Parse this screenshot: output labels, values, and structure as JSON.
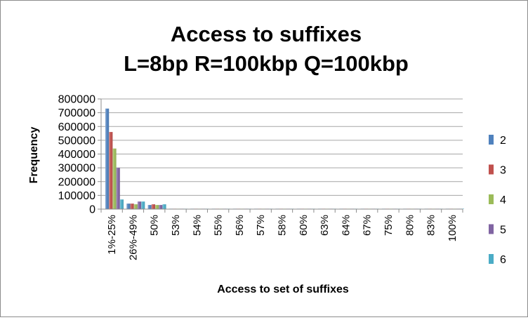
{
  "chart_data": {
    "type": "bar",
    "title": "Access to suffixes",
    "subtitle": "L=8bp R=100kbp Q=100kbp",
    "xlabel": "Access to set of suffixes",
    "ylabel": "Frequency",
    "ylim": [
      0,
      800000
    ],
    "yticks": [
      "0",
      "100000",
      "200000",
      "300000",
      "400000",
      "500000",
      "600000",
      "700000",
      "800000"
    ],
    "grid": true,
    "legend_position": "right",
    "categories": [
      "1%-25%",
      "26%-49%",
      "50%",
      "53%",
      "54%",
      "55%",
      "56%",
      "57%",
      "58%",
      "60%",
      "63%",
      "64%",
      "67%",
      "75%",
      "80%",
      "83%",
      "100%"
    ],
    "series": [
      {
        "name": "2",
        "color": "#4f81bd",
        "values": [
          730000,
          40000,
          30000,
          2000,
          1500,
          1500,
          1500,
          1500,
          1500,
          1500,
          1500,
          1500,
          1500,
          1500,
          1500,
          1500,
          1500
        ]
      },
      {
        "name": "3",
        "color": "#c0504d",
        "values": [
          560000,
          40000,
          35000,
          2000,
          1500,
          1500,
          1500,
          1500,
          1500,
          1500,
          1500,
          1500,
          1500,
          1500,
          1500,
          1500,
          1500
        ]
      },
      {
        "name": "4",
        "color": "#9bbb59",
        "values": [
          440000,
          35000,
          30000,
          2000,
          1500,
          1500,
          1500,
          1500,
          1500,
          1500,
          1500,
          1500,
          1500,
          1500,
          1500,
          1500,
          1500
        ]
      },
      {
        "name": "5",
        "color": "#8064a2",
        "values": [
          300000,
          55000,
          30000,
          2000,
          1500,
          1500,
          1500,
          1500,
          1500,
          1500,
          1500,
          1500,
          1500,
          1500,
          1500,
          1500,
          1500
        ]
      },
      {
        "name": "6",
        "color": "#4bacc6",
        "values": [
          70000,
          55000,
          35000,
          2000,
          1500,
          1500,
          1500,
          1500,
          1500,
          1500,
          1500,
          1500,
          1500,
          1500,
          1500,
          1500,
          1500
        ]
      }
    ]
  }
}
